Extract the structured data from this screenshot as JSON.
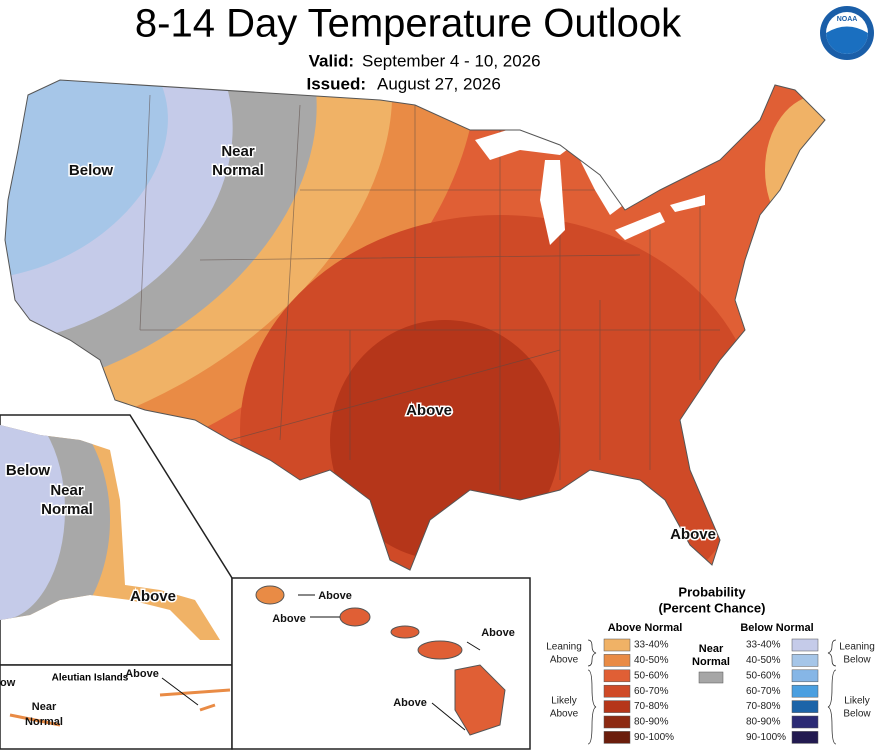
{
  "header": {
    "title": "8-14 Day Temperature Outlook",
    "valid_label": "Valid:",
    "valid": "September 4 - 10, 2026",
    "issued_label": "Issued:",
    "issued": "August 27, 2026",
    "logo": "NOAA"
  },
  "map": {
    "contiguous": {
      "below": "Below",
      "near_normal": [
        "Near",
        "Normal"
      ],
      "above": "Above",
      "above_florida": "Above"
    },
    "alaska": {
      "below": "Below",
      "near_normal": [
        "Near",
        "Normal"
      ],
      "above": "Above"
    },
    "aleutian": {
      "title": "Aleutian Islands",
      "below_cut": "ow",
      "above": "Above",
      "near_normal": [
        "Near",
        "Normal"
      ]
    },
    "hawaii": {
      "labels": [
        "Above",
        "Above",
        "Above",
        "Above"
      ]
    }
  },
  "legend": {
    "title": "Probability",
    "subtitle": "(Percent Chance)",
    "above": {
      "heading": "Above Normal",
      "bins": [
        {
          "label": "33-40%",
          "color": "#f0b266"
        },
        {
          "label": "40-50%",
          "color": "#e98b45"
        },
        {
          "label": "50-60%",
          "color": "#e05f35"
        },
        {
          "label": "60-70%",
          "color": "#cf4a27"
        },
        {
          "label": "70-80%",
          "color": "#b5361a"
        },
        {
          "label": "80-90%",
          "color": "#8d2a12"
        },
        {
          "label": "90-100%",
          "color": "#6b1d0c"
        }
      ],
      "leaning": [
        "Leaning",
        "Above"
      ],
      "likely": [
        "Likely",
        "Above"
      ]
    },
    "below": {
      "heading": "Below Normal",
      "bins": [
        {
          "label": "33-40%",
          "color": "#c5cbe9"
        },
        {
          "label": "40-50%",
          "color": "#a6c6e8"
        },
        {
          "label": "50-60%",
          "color": "#86b6e6"
        },
        {
          "label": "60-70%",
          "color": "#4a9fe0"
        },
        {
          "label": "70-80%",
          "color": "#1c64a8"
        },
        {
          "label": "80-90%",
          "color": "#2b2a74"
        },
        {
          "label": "90-100%",
          "color": "#221a50"
        }
      ],
      "leaning": [
        "Leaning",
        "Below"
      ],
      "likely": [
        "Likely",
        "Below"
      ]
    },
    "near": {
      "label": [
        "Near",
        "Normal"
      ],
      "color": "#a6a6a6"
    }
  }
}
